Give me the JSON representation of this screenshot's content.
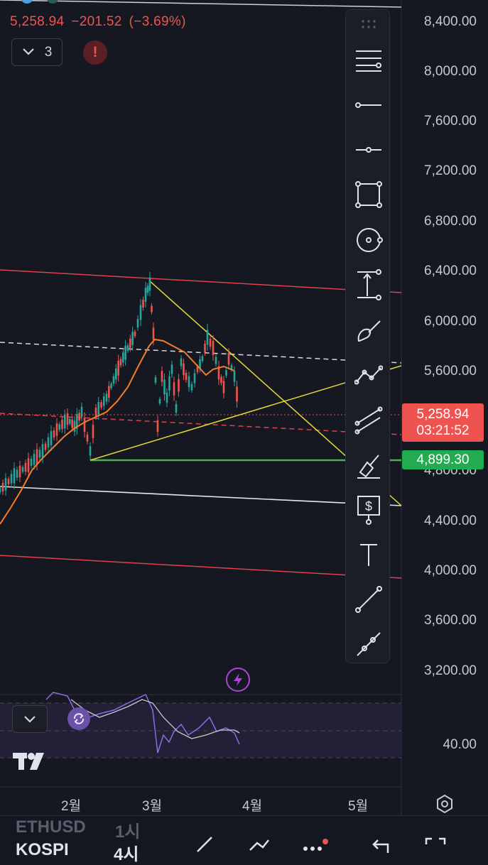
{
  "header": {
    "price": "5,258.94",
    "change": "−201.52",
    "change_pct": "(−3.69%)"
  },
  "indicators": {
    "count": "3"
  },
  "price_axis": {
    "labels": [
      "8,400.00",
      "8,000.00",
      "7,600.00",
      "7,200.00",
      "6,800.00",
      "6,400.00",
      "6,000.00",
      "5,600.00",
      "4,800.00",
      "4,400.00",
      "4,000.00",
      "3,600.00",
      "3,200.00"
    ]
  },
  "current_price_tag": {
    "price": "5,258.94",
    "countdown": "03:21:52"
  },
  "support_tag": {
    "price": "4,899.30"
  },
  "rsi": {
    "level_label": "40.00"
  },
  "time_axis": {
    "labels": [
      "2월",
      "3월",
      "4월",
      "5월"
    ]
  },
  "bottom_bar": {
    "symbol_hidden": "ETHUSD",
    "interval_hidden": "1시",
    "symbol": "KOSPI",
    "interval": "4시"
  },
  "toolbar": {
    "tools": [
      "drag-handle",
      "line-tools-menu",
      "horizontal-ray",
      "horizontal-line",
      "rectangle",
      "circle",
      "measure",
      "brush",
      "path",
      "parallel-channel",
      "highlighter",
      "price-label",
      "text",
      "trend-line",
      "trend-line-points"
    ]
  },
  "colors": {
    "up": "#26a69a",
    "down": "#ef5350",
    "ma": "#f57c2a",
    "triangle": "#e8d83a",
    "support": "#4caf50",
    "channel_red": "#e0424d",
    "rsi": "#8e6ce8",
    "accent_bolt": "#b044d8"
  }
}
